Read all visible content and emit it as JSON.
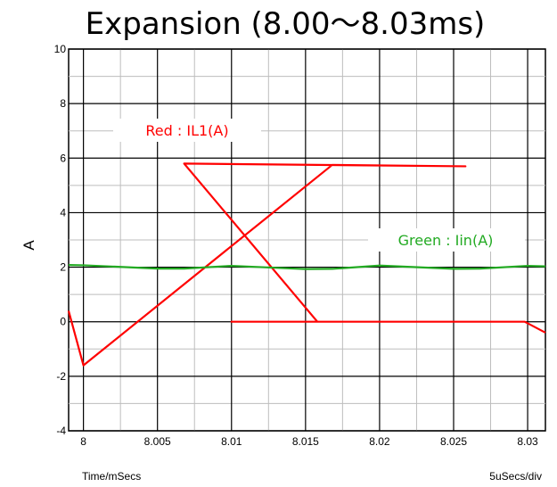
{
  "chart_data": {
    "type": "line",
    "title": "Expansion (8.00〜8.03ms)",
    "ylabel": "A",
    "xlabel": "Time/mSecs",
    "scale_label": "5uSecs/div",
    "xlim": [
      7.999,
      8.0312
    ],
    "ylim": [
      -4,
      10
    ],
    "x_ticks": [
      8,
      8.005,
      8.01,
      8.015,
      8.02,
      8.025,
      8.03
    ],
    "x_tick_labels": [
      "8",
      "8.005",
      "8.01",
      "8.015",
      "8.02",
      "8.025",
      "8.03"
    ],
    "y_ticks": [
      -4,
      -2,
      0,
      2,
      4,
      6,
      8,
      10
    ],
    "y_tick_labels": [
      "-4",
      "-2",
      "0",
      "2",
      "4",
      "6",
      "8",
      "10"
    ],
    "grid": true,
    "series": [
      {
        "name": "IL1(A)",
        "color": "#ff0000",
        "x": [
          7.999,
          8.0,
          8.0168,
          8.0258,
          8.0068,
          8.0158,
          8.01,
          8.02,
          8.0298,
          8.0312
        ],
        "y": [
          0.4,
          -1.6,
          5.75,
          5.7,
          5.8,
          0,
          0,
          0,
          0,
          -0.4
        ]
      },
      {
        "name": "Iin(A)",
        "color": "#22aa22",
        "x": [
          7.999,
          8.0,
          8.005,
          8.0068,
          8.01,
          8.015,
          8.0168,
          8.02,
          8.025,
          8.0268,
          8.03,
          8.0312
        ],
        "y": [
          2.08,
          2.07,
          1.95,
          1.95,
          2.05,
          1.93,
          1.94,
          2.06,
          1.94,
          1.95,
          2.05,
          2.03
        ]
      }
    ],
    "annotations": [
      {
        "text": "Red : IL1(A)",
        "color": "#ff0000"
      },
      {
        "text": "Green : Iin(A)",
        "color": "#22aa22"
      }
    ]
  }
}
